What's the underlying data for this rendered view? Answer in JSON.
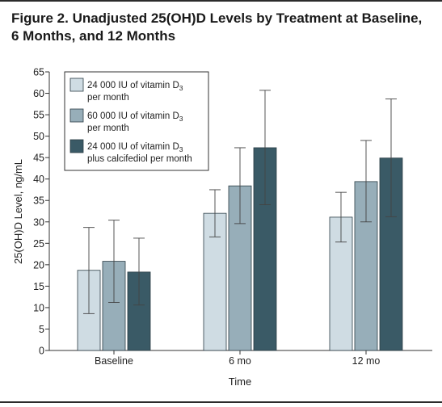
{
  "figure": {
    "title_line1": "Figure 2. Unadjusted 25(OH)D Levels by Treatment at Baseline,",
    "title_line2": "6 Months, and 12 Months"
  },
  "chart_data": {
    "type": "bar",
    "xlabel": "Time",
    "ylabel": "25(OH)D Level, ng/mL",
    "ylim": [
      0,
      65
    ],
    "yticks": [
      0,
      5,
      10,
      15,
      20,
      25,
      30,
      35,
      40,
      45,
      50,
      55,
      60,
      65
    ],
    "grid": false,
    "legend_position": "top-left",
    "categories": [
      "Baseline",
      "6 mo",
      "12 mo"
    ],
    "series": [
      {
        "name": "24 000 IU of vitamin D3 per month",
        "legend_lines": [
          "24 000 IU of vitamin D",
          "3",
          "per month"
        ],
        "color": "#cfdce3",
        "values": [
          18.7,
          32.0,
          31.1
        ],
        "error_low": [
          8.6,
          26.5,
          25.3
        ],
        "error_high": [
          28.7,
          37.5,
          36.9
        ]
      },
      {
        "name": "60 000 IU of vitamin D3 per month",
        "legend_lines": [
          "60 000 IU of vitamin D",
          "3",
          "per month"
        ],
        "color": "#97aeb9",
        "values": [
          20.8,
          38.4,
          39.4
        ],
        "error_low": [
          11.2,
          29.6,
          30.0
        ],
        "error_high": [
          30.4,
          47.3,
          49.0
        ]
      },
      {
        "name": "24 000 IU of vitamin D3 plus calcifediol per month",
        "legend_lines": [
          "24 000 IU of vitamin D",
          "3",
          "plus calcifediol per month"
        ],
        "color": "#3a5a66",
        "values": [
          18.3,
          47.3,
          44.9
        ],
        "error_low": [
          10.6,
          34.0,
          31.2
        ],
        "error_high": [
          26.2,
          60.7,
          58.7
        ]
      }
    ]
  }
}
